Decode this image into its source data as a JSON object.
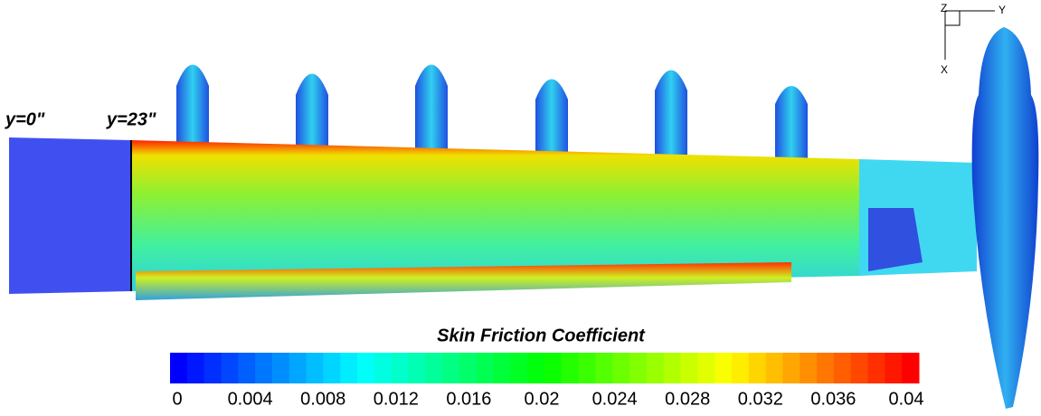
{
  "labels": {
    "station_root": "y=0\"",
    "station_break": "y=23\""
  },
  "triad": {
    "z": "Z",
    "y": "Y",
    "x": "X"
  },
  "colorbar": {
    "title": "Skin Friction Coefficient",
    "range": [
      0,
      0.04
    ],
    "ticks": [
      0,
      0.004,
      0.008,
      0.012,
      0.016,
      0.02,
      0.024,
      0.028,
      0.032,
      0.036,
      0.04
    ],
    "colors": [
      "#0000ff",
      "#00ffff",
      "#00ff00",
      "#ffff00",
      "#ff0000"
    ]
  }
}
